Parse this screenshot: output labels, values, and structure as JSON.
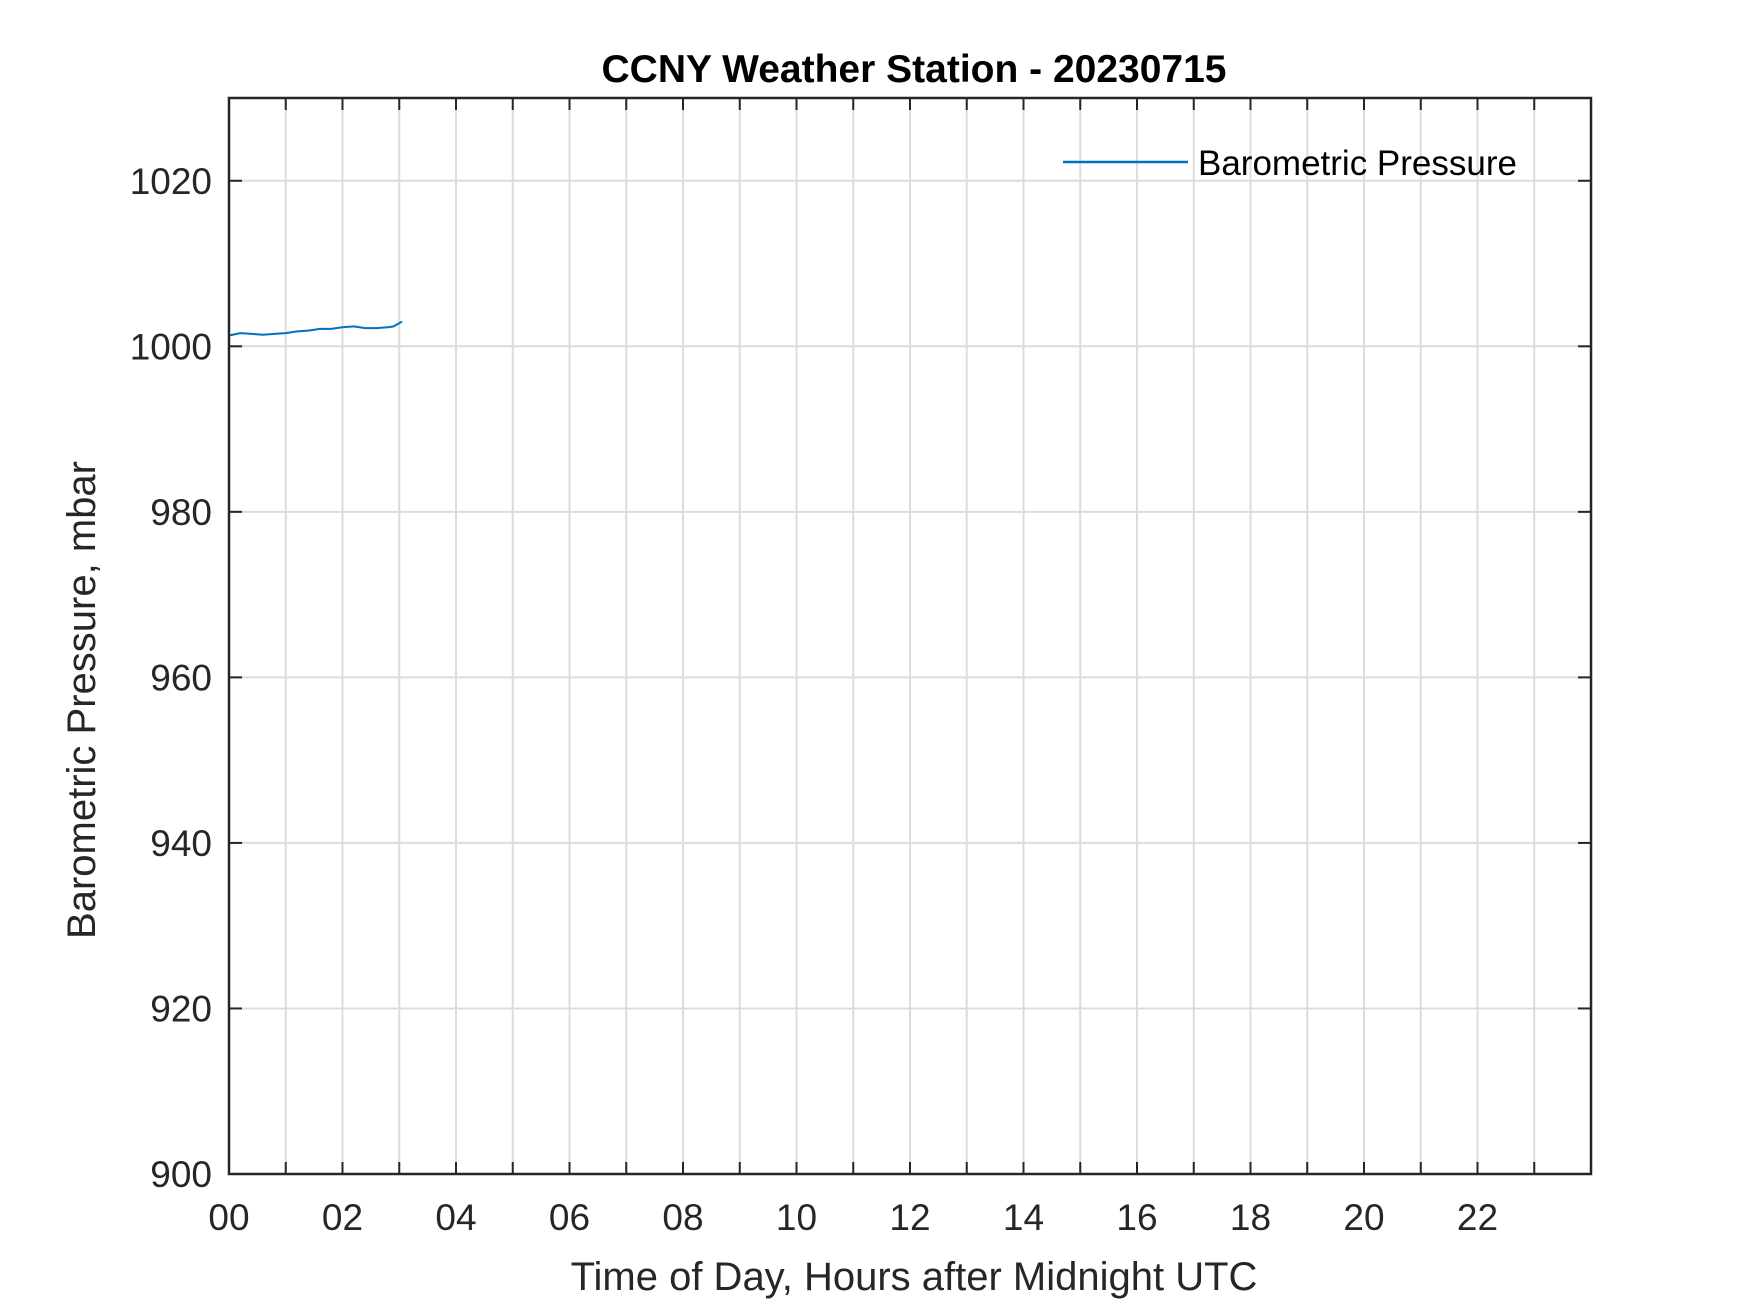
{
  "chart_data": {
    "type": "line",
    "title": "CCNY Weather Station - 20230715",
    "xlabel": "Time of Day, Hours after Midnight UTC",
    "ylabel": "Barometric Pressure, mbar",
    "xlim": [
      0,
      24
    ],
    "ylim": [
      900,
      1030
    ],
    "x_ticks": [
      "00",
      "02",
      "04",
      "06",
      "08",
      "10",
      "12",
      "14",
      "16",
      "18",
      "20",
      "22"
    ],
    "y_ticks": [
      "900",
      "920",
      "940",
      "960",
      "980",
      "1000",
      "1020"
    ],
    "grid": true,
    "legend_position": "top-right",
    "series": [
      {
        "name": "Barometric Pressure",
        "color": "#0072BD",
        "x": [
          0.0,
          0.2,
          0.4,
          0.6,
          0.8,
          1.0,
          1.2,
          1.4,
          1.6,
          1.8,
          2.0,
          2.2,
          2.4,
          2.6,
          2.8,
          2.9,
          3.0,
          3.05
        ],
        "y": [
          1001.3,
          1001.6,
          1001.5,
          1001.4,
          1001.5,
          1001.6,
          1001.8,
          1001.9,
          1002.1,
          1002.1,
          1002.3,
          1002.4,
          1002.2,
          1002.2,
          1002.3,
          1002.4,
          1002.8,
          1003.0
        ]
      }
    ]
  }
}
